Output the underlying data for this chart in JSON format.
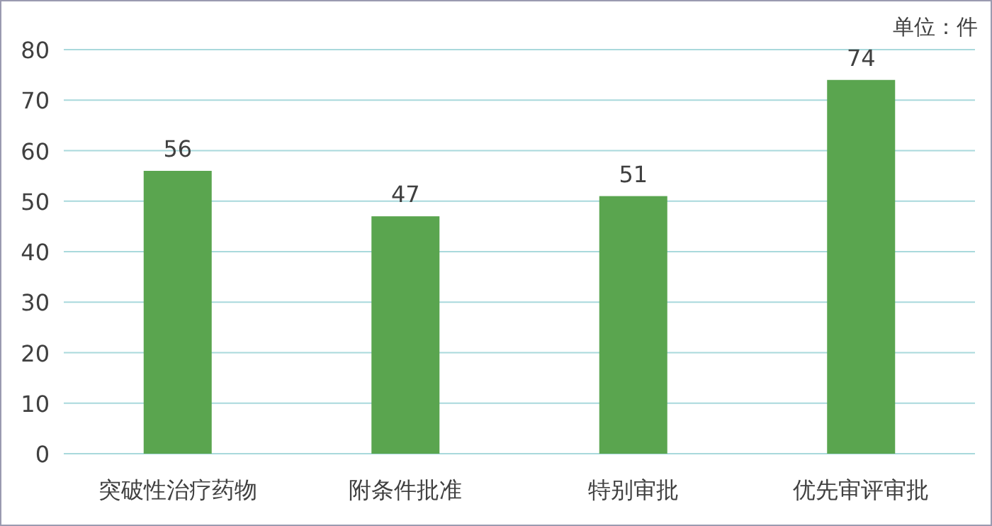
{
  "chart_data": {
    "type": "bar",
    "categories": [
      "突破性治疗药物",
      "附条件批准",
      "特别审批",
      "优先审评审批"
    ],
    "values": [
      56,
      47,
      51,
      74
    ],
    "color": "#5aa54f",
    "ylim": [
      0,
      80
    ],
    "yticks": [
      0,
      10,
      20,
      30,
      40,
      50,
      60,
      70,
      80
    ],
    "grid": "y",
    "data_labels": true,
    "annotations": [
      "单位：件"
    ]
  }
}
